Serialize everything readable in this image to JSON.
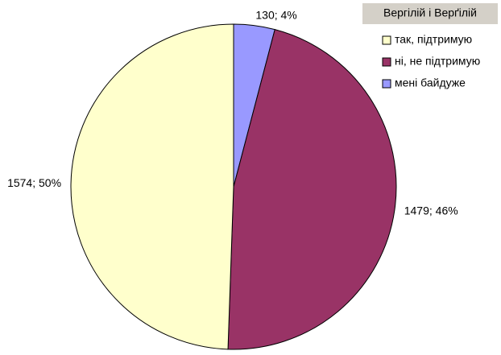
{
  "chart_data": {
    "type": "pie",
    "title": "Вергілій і Верґілій",
    "categories": [
      "так, підтримую",
      "ні, не підтримую",
      "мені байдуже"
    ],
    "values": [
      1574,
      1479,
      130
    ],
    "value_labels": [
      "1574; 50%",
      "1479; 46%",
      "130; 4%"
    ],
    "colors": [
      "#FFFFCC",
      "#993366",
      "#9999FF"
    ]
  }
}
